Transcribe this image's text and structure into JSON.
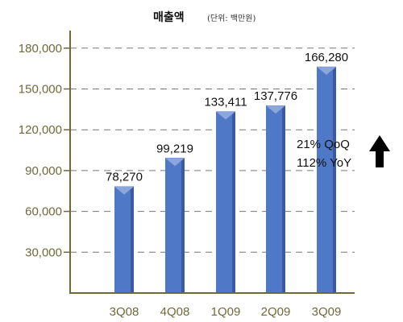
{
  "chart_data": {
    "type": "bar",
    "title": "매출액",
    "unit": "(단위: 백만원)",
    "categories": [
      "3Q08",
      "4Q08",
      "1Q09",
      "2Q09",
      "3Q09"
    ],
    "values": [
      78270,
      99219,
      133411,
      137776,
      166280
    ],
    "value_labels": [
      "78,270",
      "99,219",
      "133,411",
      "137,776",
      "166,280"
    ],
    "yticks": [
      30000,
      60000,
      90000,
      120000,
      150000,
      180000
    ],
    "ytick_labels": [
      "30,000",
      "60,000",
      "90,000",
      "120,000",
      "150,000",
      "180,000"
    ],
    "ylim": [
      0,
      190000
    ],
    "grid": true,
    "legend": "none",
    "annotation": {
      "lines": [
        "21% QoQ",
        "112% YoY"
      ],
      "arrow": "up-arrow-icon"
    },
    "colors": {
      "bar_front": "#4f79c6",
      "bar_side": "#3b5aa3",
      "bar_top": "#8aa6dc",
      "axis": "#6d6a3a",
      "tick_text": "#6d6a3a",
      "grid": "#777777",
      "arrow": "#000000"
    }
  }
}
